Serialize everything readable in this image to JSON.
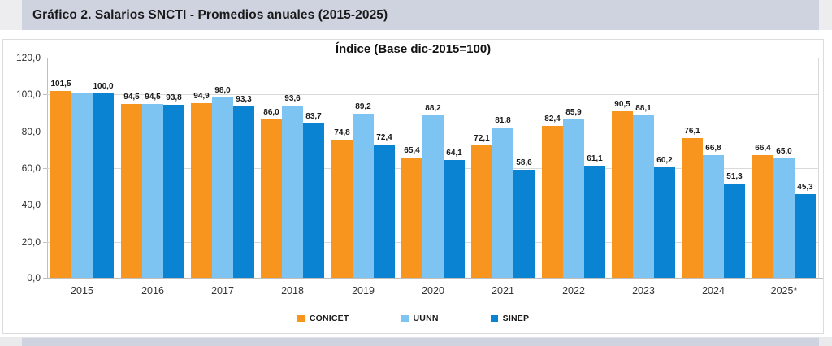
{
  "page": {
    "section_title": "Gráfico 2. Salarios SNCTI - Promedios anuales (2015-2025)"
  },
  "chart_data": {
    "type": "bar",
    "title": "Índice (Base dic-2015=100)",
    "categories": [
      "2015",
      "2016",
      "2017",
      "2018",
      "2019",
      "2020",
      "2021",
      "2022",
      "2023",
      "2024",
      "2025*"
    ],
    "series": [
      {
        "name": "CONICET",
        "color": "#F8951E",
        "values": [
          101.5,
          94.5,
          94.9,
          86.0,
          74.8,
          65.4,
          72.1,
          82.4,
          90.5,
          76.1,
          66.4
        ],
        "labels": [
          "101,5",
          "94,5",
          "94,9",
          "86,0",
          "74,8",
          "65,4",
          "72,1",
          "82,4",
          "90,5",
          "76,1",
          "66,4"
        ]
      },
      {
        "name": "UUNN",
        "color": "#7EC4F3",
        "values": [
          100.0,
          94.5,
          98.0,
          93.6,
          89.2,
          88.2,
          81.8,
          85.9,
          88.1,
          66.8,
          65.0
        ],
        "labels": [
          "",
          "94,5",
          "98,0",
          "93,6",
          "89,2",
          "88,2",
          "81,8",
          "85,9",
          "88,1",
          "66,8",
          "65,0"
        ]
      },
      {
        "name": "SINEP",
        "color": "#0A83D2",
        "values": [
          100.0,
          93.8,
          93.3,
          83.7,
          72.4,
          64.1,
          58.6,
          61.1,
          60.2,
          51.3,
          45.3
        ],
        "labels": [
          "100,0",
          "93,8",
          "93,3",
          "83,7",
          "72,4",
          "64,1",
          "58,6",
          "61,1",
          "60,2",
          "51,3",
          "45,3"
        ]
      }
    ],
    "ylim": [
      0,
      120
    ],
    "ytick_step": 20,
    "ytick_labels": [
      "0,0",
      "20,0",
      "40,0",
      "60,0",
      "80,0",
      "100,0",
      "120,0"
    ],
    "grid": true,
    "legend_position": "bottom",
    "legend_entries": [
      "CONICET",
      "UUNN",
      "SINEP"
    ]
  },
  "colors": {
    "band": "#CED3DF",
    "band_edges": "#EDEDEF",
    "gridline": "#D9D9D9",
    "axis": "#BFBFBF",
    "conicet": "#F8951E",
    "uunn": "#7EC4F3",
    "sinep": "#0A83D2"
  }
}
